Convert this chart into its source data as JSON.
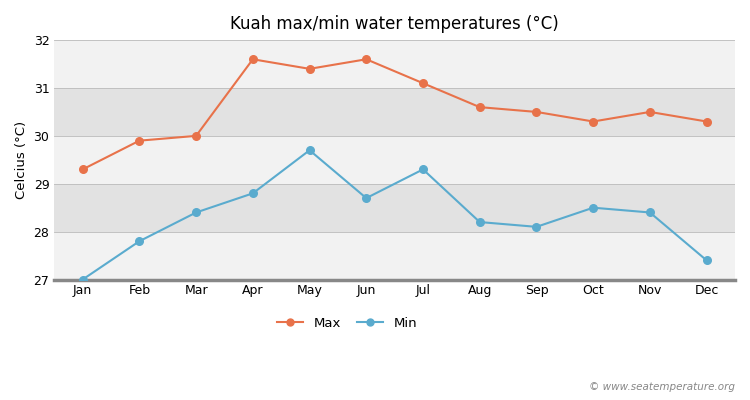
{
  "title": "Kuah max/min water temperatures (°C)",
  "ylabel": "Celcius (°C)",
  "months": [
    "Jan",
    "Feb",
    "Mar",
    "Apr",
    "May",
    "Jun",
    "Jul",
    "Aug",
    "Sep",
    "Oct",
    "Nov",
    "Dec"
  ],
  "max_temps": [
    29.3,
    29.9,
    30.0,
    31.6,
    31.4,
    31.6,
    31.1,
    30.6,
    30.5,
    30.3,
    30.5,
    30.3
  ],
  "min_temps": [
    27.0,
    27.8,
    28.4,
    28.8,
    29.7,
    28.7,
    29.3,
    28.2,
    28.1,
    28.5,
    28.4,
    27.4
  ],
  "max_color": "#e8724a",
  "min_color": "#5aabce",
  "ylim": [
    27,
    32
  ],
  "yticks": [
    27,
    28,
    29,
    30,
    31,
    32
  ],
  "band_light": "#f2f2f2",
  "band_dark": "#e2e2e2",
  "background_color": "#ffffff",
  "watermark": "© www.seatemperature.org",
  "title_fontsize": 12,
  "label_fontsize": 9.5,
  "tick_fontsize": 9
}
